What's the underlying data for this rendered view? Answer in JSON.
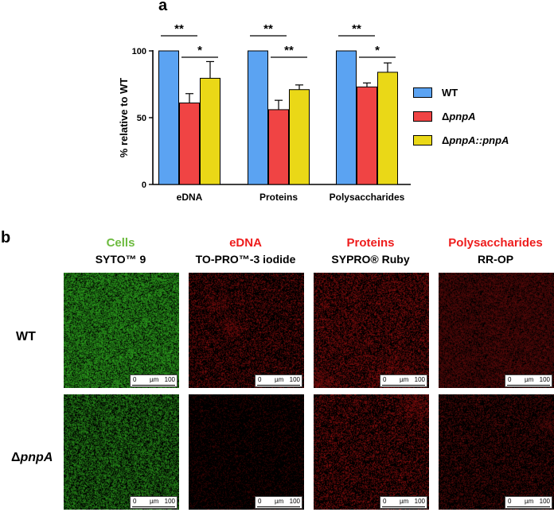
{
  "panel_a_label": "a",
  "panel_b_label": "b",
  "chart_data": {
    "type": "bar",
    "categories": [
      "eDNA",
      "Proteins",
      "Polysaccharides"
    ],
    "series": [
      {
        "name": "WT",
        "values": [
          100,
          100,
          100
        ],
        "errors": [
          0,
          0,
          0
        ],
        "color": "#5ba3f2"
      },
      {
        "name": "ΔpnpA",
        "values": [
          61,
          56,
          73
        ],
        "errors": [
          7,
          7,
          3
        ],
        "color": "#f04444"
      },
      {
        "name": "ΔpnpA::pnpA",
        "values": [
          79.5,
          71,
          84
        ],
        "errors": [
          12.5,
          3.5,
          7
        ],
        "color": "#ead817"
      }
    ],
    "ylabel": "% relative to WT",
    "ylim": [
      0,
      100
    ],
    "yticks": [
      0,
      50,
      100
    ],
    "legend_position": "right",
    "significance": [
      {
        "category": "eDNA",
        "pair": [
          "WT",
          "ΔpnpA"
        ],
        "label": "**"
      },
      {
        "category": "eDNA",
        "pair": [
          "ΔpnpA",
          "ΔpnpA::pnpA"
        ],
        "label": "*"
      },
      {
        "category": "Proteins",
        "pair": [
          "WT",
          "ΔpnpA"
        ],
        "label": "**"
      },
      {
        "category": "Proteins",
        "pair": [
          "ΔpnpA",
          "ΔpnpA::pnpA"
        ],
        "label": "**"
      },
      {
        "category": "Polysaccharides",
        "pair": [
          "WT",
          "ΔpnpA"
        ],
        "label": "**"
      },
      {
        "category": "Polysaccharides",
        "pair": [
          "ΔpnpA",
          "ΔpnpA::pnpA"
        ],
        "label": "*"
      }
    ]
  },
  "legend": {
    "wt": "WT",
    "mut_delta": "Δ",
    "mut_name": "pnpA",
    "comp_delta": "Δ",
    "comp_name": "pnpA::pnpA"
  },
  "microscopy": {
    "columns": [
      {
        "stain_target": "Cells",
        "dye": "SYTO™ 9",
        "target_color": "#6dbb3f"
      },
      {
        "stain_target": "eDNA",
        "dye": "TO-PRO™-3 iodide",
        "target_color": "#ee1c1c"
      },
      {
        "stain_target": "Proteins",
        "dye": "SYPRO® Ruby",
        "target_color": "#ee1c1c"
      },
      {
        "stain_target": "Polysaccharides",
        "dye": "RR-OP",
        "target_color": "#ee1c1c"
      }
    ],
    "rows": [
      {
        "label": "WT",
        "delta": "",
        "name": ""
      },
      {
        "label": "",
        "delta": "Δ",
        "name": "pnpA"
      }
    ],
    "scale_bar": {
      "start": "0",
      "unit": "µm",
      "end": "100"
    }
  }
}
